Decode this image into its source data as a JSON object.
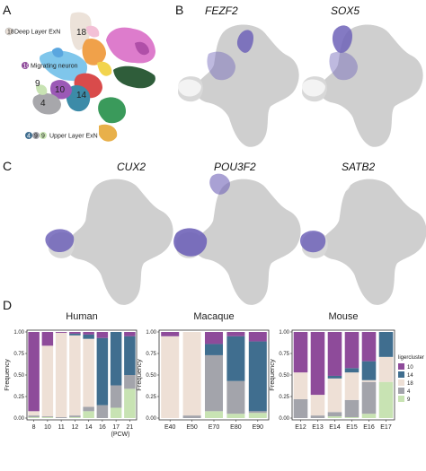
{
  "panels": {
    "a": {
      "letter": "A"
    },
    "b": {
      "letter": "B",
      "genes": [
        "FEZF2",
        "SOX5"
      ]
    },
    "c": {
      "letter": "C",
      "genes": [
        "CUX2",
        "POU3F2",
        "SATB2"
      ]
    },
    "d": {
      "letter": "D"
    }
  },
  "umap": {
    "deep_label": "Deep Layer ExN",
    "deep_badge": "18",
    "migrating_label": "Migrating neuron",
    "migrating_badge": "10",
    "upper_label": "Upper Layer ExN",
    "upper_badges": [
      "4",
      "9",
      "9"
    ],
    "cluster_numbers": [
      "18",
      "9",
      "10",
      "14",
      "4"
    ]
  },
  "colors": {
    "c10": "#8e4b9a",
    "c14": "#406e8f",
    "c18": "#eee0d6",
    "c4": "#a3a4ab",
    "c9": "#c8e3b3",
    "silhouette": "#cfcfcf",
    "expression": "#6f63b8"
  },
  "chart_data": [
    {
      "type": "bar",
      "stacked": true,
      "title": "Human",
      "ylabel": "Frequency",
      "xlabel": "(PCW)",
      "ylim": [
        0,
        1
      ],
      "yticks": [
        "0.00",
        "0.25",
        "0.50",
        "0.75",
        "1.00"
      ],
      "categories": [
        "8",
        "10",
        "11",
        "12",
        "14",
        "16",
        "17",
        "21"
      ],
      "series": [
        {
          "name": "9",
          "values": [
            0.01,
            0.01,
            0.0,
            0.01,
            0.08,
            0.0,
            0.12,
            0.34
          ]
        },
        {
          "name": "4",
          "values": [
            0.02,
            0.01,
            0.01,
            0.02,
            0.05,
            0.15,
            0.26,
            0.16
          ]
        },
        {
          "name": "18",
          "values": [
            0.05,
            0.82,
            0.98,
            0.93,
            0.79,
            0.0,
            0.0,
            0.0
          ]
        },
        {
          "name": "14",
          "values": [
            0.0,
            0.0,
            0.0,
            0.02,
            0.05,
            0.78,
            0.62,
            0.45
          ]
        },
        {
          "name": "10",
          "values": [
            0.92,
            0.16,
            0.01,
            0.02,
            0.03,
            0.07,
            0.0,
            0.05
          ]
        }
      ]
    },
    {
      "type": "bar",
      "stacked": true,
      "title": "Macaque",
      "ylabel": "Frequency",
      "ylim": [
        0,
        1
      ],
      "yticks": [
        "0.00",
        "0.25",
        "0.50",
        "0.75",
        "1.00"
      ],
      "categories": [
        "E40",
        "E50",
        "E70",
        "E80",
        "E90"
      ],
      "series": [
        {
          "name": "9",
          "values": [
            0.0,
            0.0,
            0.08,
            0.05,
            0.06
          ]
        },
        {
          "name": "4",
          "values": [
            0.0,
            0.03,
            0.65,
            0.38,
            0.02
          ]
        },
        {
          "name": "18",
          "values": [
            0.95,
            0.97,
            0.0,
            0.0,
            0.0
          ]
        },
        {
          "name": "14",
          "values": [
            0.0,
            0.0,
            0.13,
            0.52,
            0.81
          ]
        },
        {
          "name": "10",
          "values": [
            0.05,
            0.0,
            0.14,
            0.05,
            0.11
          ]
        }
      ]
    },
    {
      "type": "bar",
      "stacked": true,
      "title": "Mouse",
      "ylabel": "Frequency",
      "ylim": [
        0,
        1
      ],
      "yticks": [
        "0.00",
        "0.25",
        "0.50",
        "0.75",
        "1.00"
      ],
      "categories": [
        "E12",
        "E13",
        "E14",
        "E15",
        "E16",
        "E17"
      ],
      "series": [
        {
          "name": "9",
          "values": [
            0.0,
            0.0,
            0.02,
            0.01,
            0.05,
            0.42
          ]
        },
        {
          "name": "4",
          "values": [
            0.22,
            0.03,
            0.05,
            0.2,
            0.37,
            0.0
          ]
        },
        {
          "name": "18",
          "values": [
            0.31,
            0.24,
            0.39,
            0.32,
            0.02,
            0.29
          ]
        },
        {
          "name": "14",
          "values": [
            0.0,
            0.0,
            0.03,
            0.05,
            0.22,
            0.29
          ]
        },
        {
          "name": "10",
          "values": [
            0.47,
            0.73,
            0.51,
            0.42,
            0.34,
            0.0
          ]
        }
      ],
      "legend": {
        "title": "ligercluster",
        "placement": "right",
        "entries": [
          "10",
          "14",
          "18",
          "4",
          "9"
        ]
      }
    }
  ]
}
